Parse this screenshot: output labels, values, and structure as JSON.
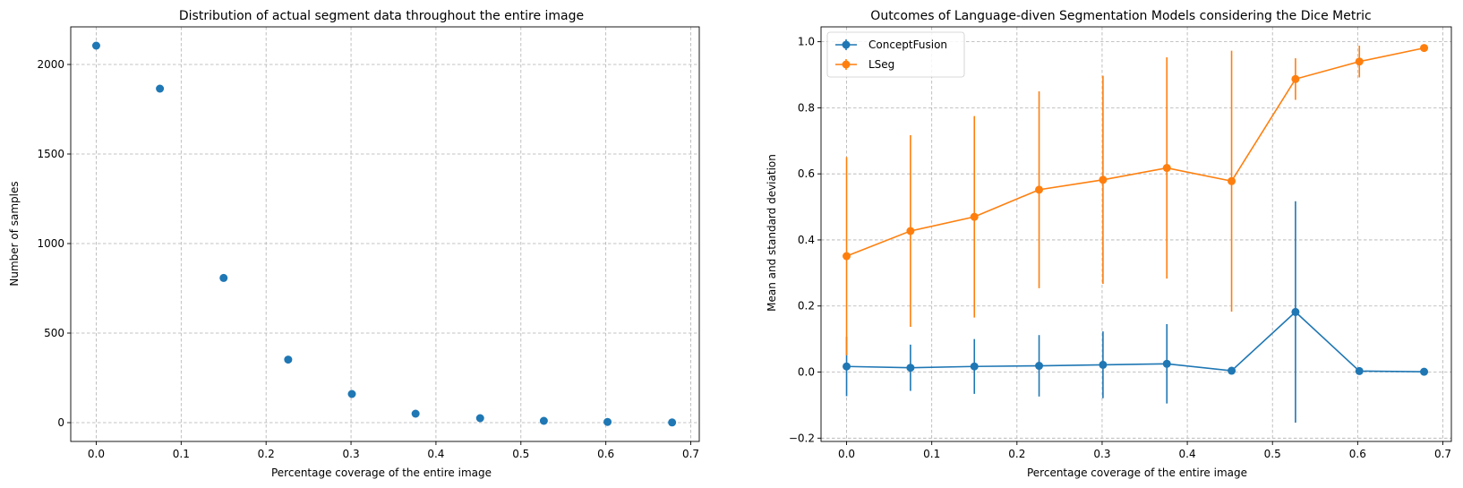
{
  "chart_data": [
    {
      "type": "scatter",
      "title": "Distribution of actual segment data throughout the entire image",
      "xlabel": "Percentage coverage of the entire image",
      "ylabel": "Number of samples",
      "xlim": [
        -0.03,
        0.71
      ],
      "ylim": [
        -105,
        2210
      ],
      "xticks": [
        0.0,
        0.1,
        0.2,
        0.3,
        0.4,
        0.5,
        0.6,
        0.7
      ],
      "xtick_labels": [
        "0.0",
        "0.1",
        "0.2",
        "0.3",
        "0.4",
        "0.5",
        "0.6",
        "0.7"
      ],
      "yticks": [
        0,
        500,
        1000,
        1500,
        2000
      ],
      "ytick_labels": [
        "0",
        "500",
        "1000",
        "1500",
        "2000"
      ],
      "grid": true,
      "color": "#1f77b4",
      "x": [
        0.0,
        0.075,
        0.15,
        0.226,
        0.301,
        0.376,
        0.452,
        0.527,
        0.602,
        0.678
      ],
      "y": [
        2105,
        1865,
        808,
        352,
        160,
        50,
        25,
        10,
        4,
        1
      ]
    },
    {
      "type": "line",
      "title": "Outcomes of Language-diven Segmentation Models considering the Dice Metric",
      "xlabel": "Percentage coverage of the entire image",
      "ylabel": "Mean and standard deviation",
      "xlim": [
        -0.03,
        0.71
      ],
      "ylim": [
        -0.21,
        1.045
      ],
      "xticks": [
        0.0,
        0.1,
        0.2,
        0.3,
        0.4,
        0.5,
        0.6,
        0.7
      ],
      "xtick_labels": [
        "0.0",
        "0.1",
        "0.2",
        "0.3",
        "0.4",
        "0.5",
        "0.6",
        "0.7"
      ],
      "yticks": [
        -0.2,
        0.0,
        0.2,
        0.4,
        0.6,
        0.8,
        1.0
      ],
      "ytick_labels": [
        "−0.2",
        "0.0",
        "0.2",
        "0.4",
        "0.6",
        "0.8",
        "1.0"
      ],
      "grid": true,
      "legend": "top-left",
      "x": [
        0.0,
        0.075,
        0.15,
        0.226,
        0.301,
        0.376,
        0.452,
        0.527,
        0.602,
        0.678
      ],
      "series": [
        {
          "name": "ConceptFusion",
          "color": "#1f77b4",
          "mean": [
            0.017,
            0.013,
            0.017,
            0.019,
            0.022,
            0.025,
            0.004,
            0.182,
            0.003,
            0.001
          ],
          "std": [
            0.09,
            0.07,
            0.083,
            0.093,
            0.101,
            0.12,
            0.0,
            0.335,
            0.0,
            0.0
          ]
        },
        {
          "name": "LSeg",
          "color": "#ff7f0e",
          "mean": [
            0.351,
            0.427,
            0.47,
            0.552,
            0.582,
            0.618,
            0.578,
            0.887,
            0.94,
            0.981
          ],
          "std": [
            0.3,
            0.29,
            0.305,
            0.298,
            0.315,
            0.335,
            0.395,
            0.063,
            0.048,
            0.0
          ]
        }
      ]
    }
  ]
}
